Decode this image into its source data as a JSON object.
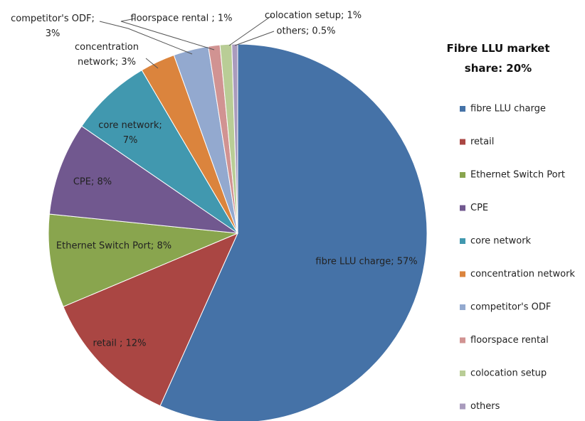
{
  "chart_data": {
    "type": "pie",
    "title": "Fibre LLU market share: 20%",
    "categories": [
      "fibre LLU charge",
      "retail",
      "Ethernet Switch Port",
      "CPE",
      "core network",
      "concentration network",
      "competitor's ODF",
      "floorspace rental",
      "colocation setup",
      "others"
    ],
    "values": [
      57,
      12,
      8,
      8,
      7,
      3,
      3,
      1,
      1,
      0.5
    ],
    "value_labels": [
      "fibre LLU charge; 57%",
      "retail ; 12%",
      "Ethernet Switch Port; 8%",
      "CPE; 8%",
      "core network; 7%",
      "concentration network; 3%",
      "competitor's ODF; 3%",
      "floorspace rental ; 1%",
      "colocation setup; 1%",
      "others; 0.5%"
    ],
    "colors": [
      "#4572a7",
      "#aa4643",
      "#89a54e",
      "#71588f",
      "#4198af",
      "#db843d",
      "#93a9cf",
      "#d19392",
      "#b9cd96",
      "#a99bbd"
    ],
    "legend": "right"
  }
}
